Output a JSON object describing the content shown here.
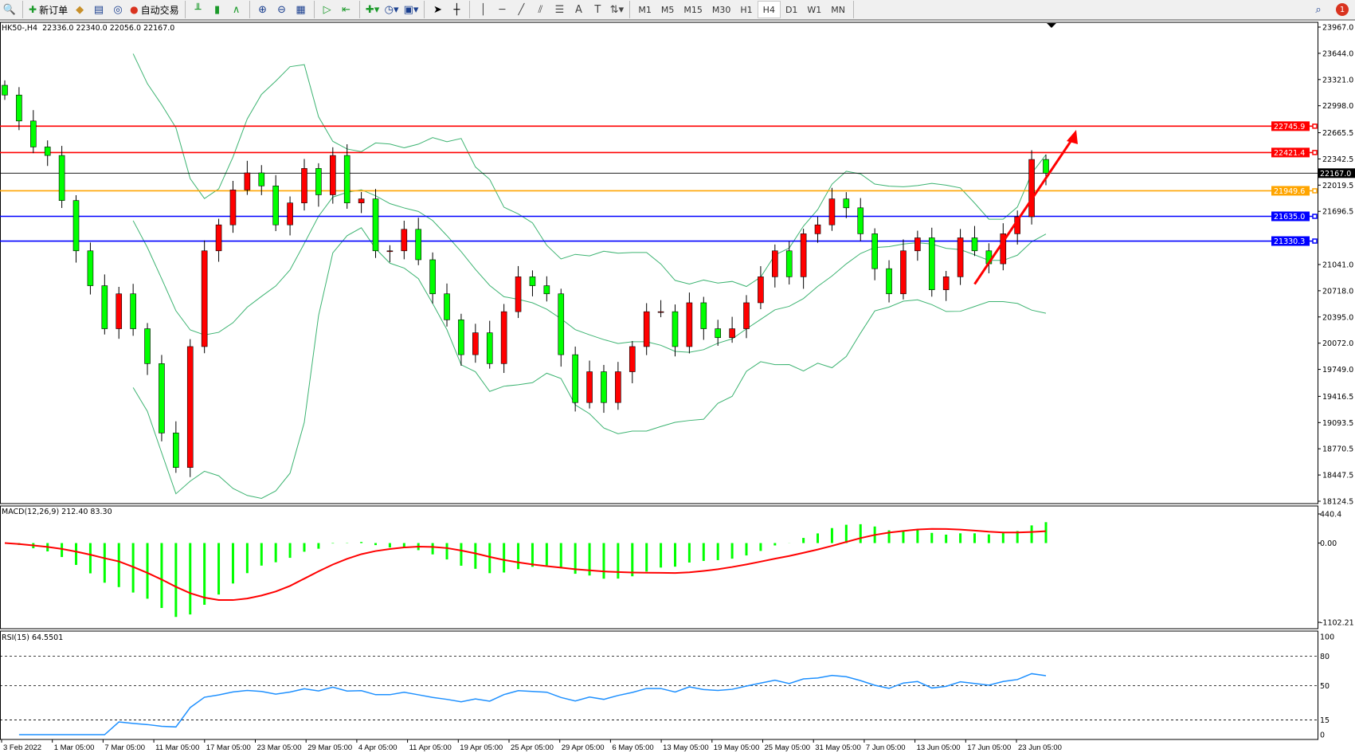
{
  "toolbar": {
    "new_order": "新订单",
    "auto_trading": "自动交易",
    "timeframes": [
      "M1",
      "M5",
      "M15",
      "M30",
      "H1",
      "H4",
      "D1",
      "W1",
      "MN"
    ],
    "active_timeframe": "H4",
    "notification_count": "1"
  },
  "main": {
    "header": "HK50-,H4  22336.0 22340.0 22056.0 22167.0",
    "price_axis": [
      "23967.0",
      "23644.0",
      "23321.0",
      "22998.0",
      "22665.5",
      "22342.5",
      "22019.5",
      "21696.5",
      "21041.0",
      "20718.0",
      "20395.0",
      "20072.0",
      "19749.0",
      "19416.5",
      "19093.5",
      "18770.5",
      "18447.5",
      "18124.5"
    ],
    "price_range": [
      18124.5,
      23967.0
    ],
    "current_price": "22167.0",
    "levels": [
      {
        "price": "22745.9",
        "color": "#ff0000"
      },
      {
        "price": "22421.4",
        "color": "#ff0000"
      },
      {
        "price": "21949.6",
        "color": "#ffa500"
      },
      {
        "price": "21635.0",
        "color": "#0000ff"
      },
      {
        "price": "21330.3",
        "color": "#0000ff"
      }
    ],
    "arrow": {
      "from_price": 20800,
      "to_price": 22700,
      "color": "#ff0000"
    },
    "colors": {
      "bull": "#ff0000",
      "bear": "#00ff00",
      "wick": "#000000",
      "bands": "#3cb371"
    },
    "closes": [
      23130,
      22810,
      22490,
      22385,
      21830,
      21210,
      20780,
      20250,
      20680,
      20250,
      19820,
      18965,
      18540,
      20030,
      21210,
      21530,
      21960,
      22170,
      22010,
      21530,
      21800,
      22225,
      21900,
      22385,
      21800,
      21850,
      21210,
      21210,
      21475,
      21100,
      20680,
      20360,
      19930,
      20200,
      19820,
      20460,
      20890,
      20780,
      20680,
      19930,
      19340,
      19720,
      19340,
      19720,
      20030,
      20460,
      20460,
      20030,
      20570,
      20250,
      20140,
      20250,
      20570,
      20890,
      21210,
      20890,
      21420,
      21530,
      21850,
      21740,
      21420,
      20990,
      20680,
      21210,
      21370,
      20730,
      20890,
      21370,
      21210,
      21050,
      21420,
      21630,
      22336,
      22167
    ]
  },
  "macd": {
    "header": "MACD(12,26,9) 212.40 83.30",
    "axis": [
      "440.4",
      "0.00",
      "-1102.21"
    ],
    "range": [
      -1102.21,
      440.4
    ],
    "hist_color": "#00ff00",
    "signal_color": "#ff0000"
  },
  "rsi": {
    "header": "RSI(15) 64.5501",
    "axis": [
      "100",
      "80",
      "50",
      "15",
      "0"
    ],
    "levels": [
      80,
      50,
      15
    ],
    "color": "#1e90ff"
  },
  "time_axis": [
    "3 Feb 2022",
    "1 Mar 05:00",
    "7 Mar 05:00",
    "11 Mar 05:00",
    "17 Mar 05:00",
    "23 Mar 05:00",
    "29 Mar 05:00",
    "4 Apr 05:00",
    "11 Apr 05:00",
    "19 Apr 05:00",
    "25 Apr 05:00",
    "29 Apr 05:00",
    "6 May 05:00",
    "13 May 05:00",
    "19 May 05:00",
    "25 May 05:00",
    "31 May 05:00",
    "7 Jun 05:00",
    "13 Jun 05:00",
    "17 Jun 05:00",
    "23 Jun 05:00"
  ]
}
